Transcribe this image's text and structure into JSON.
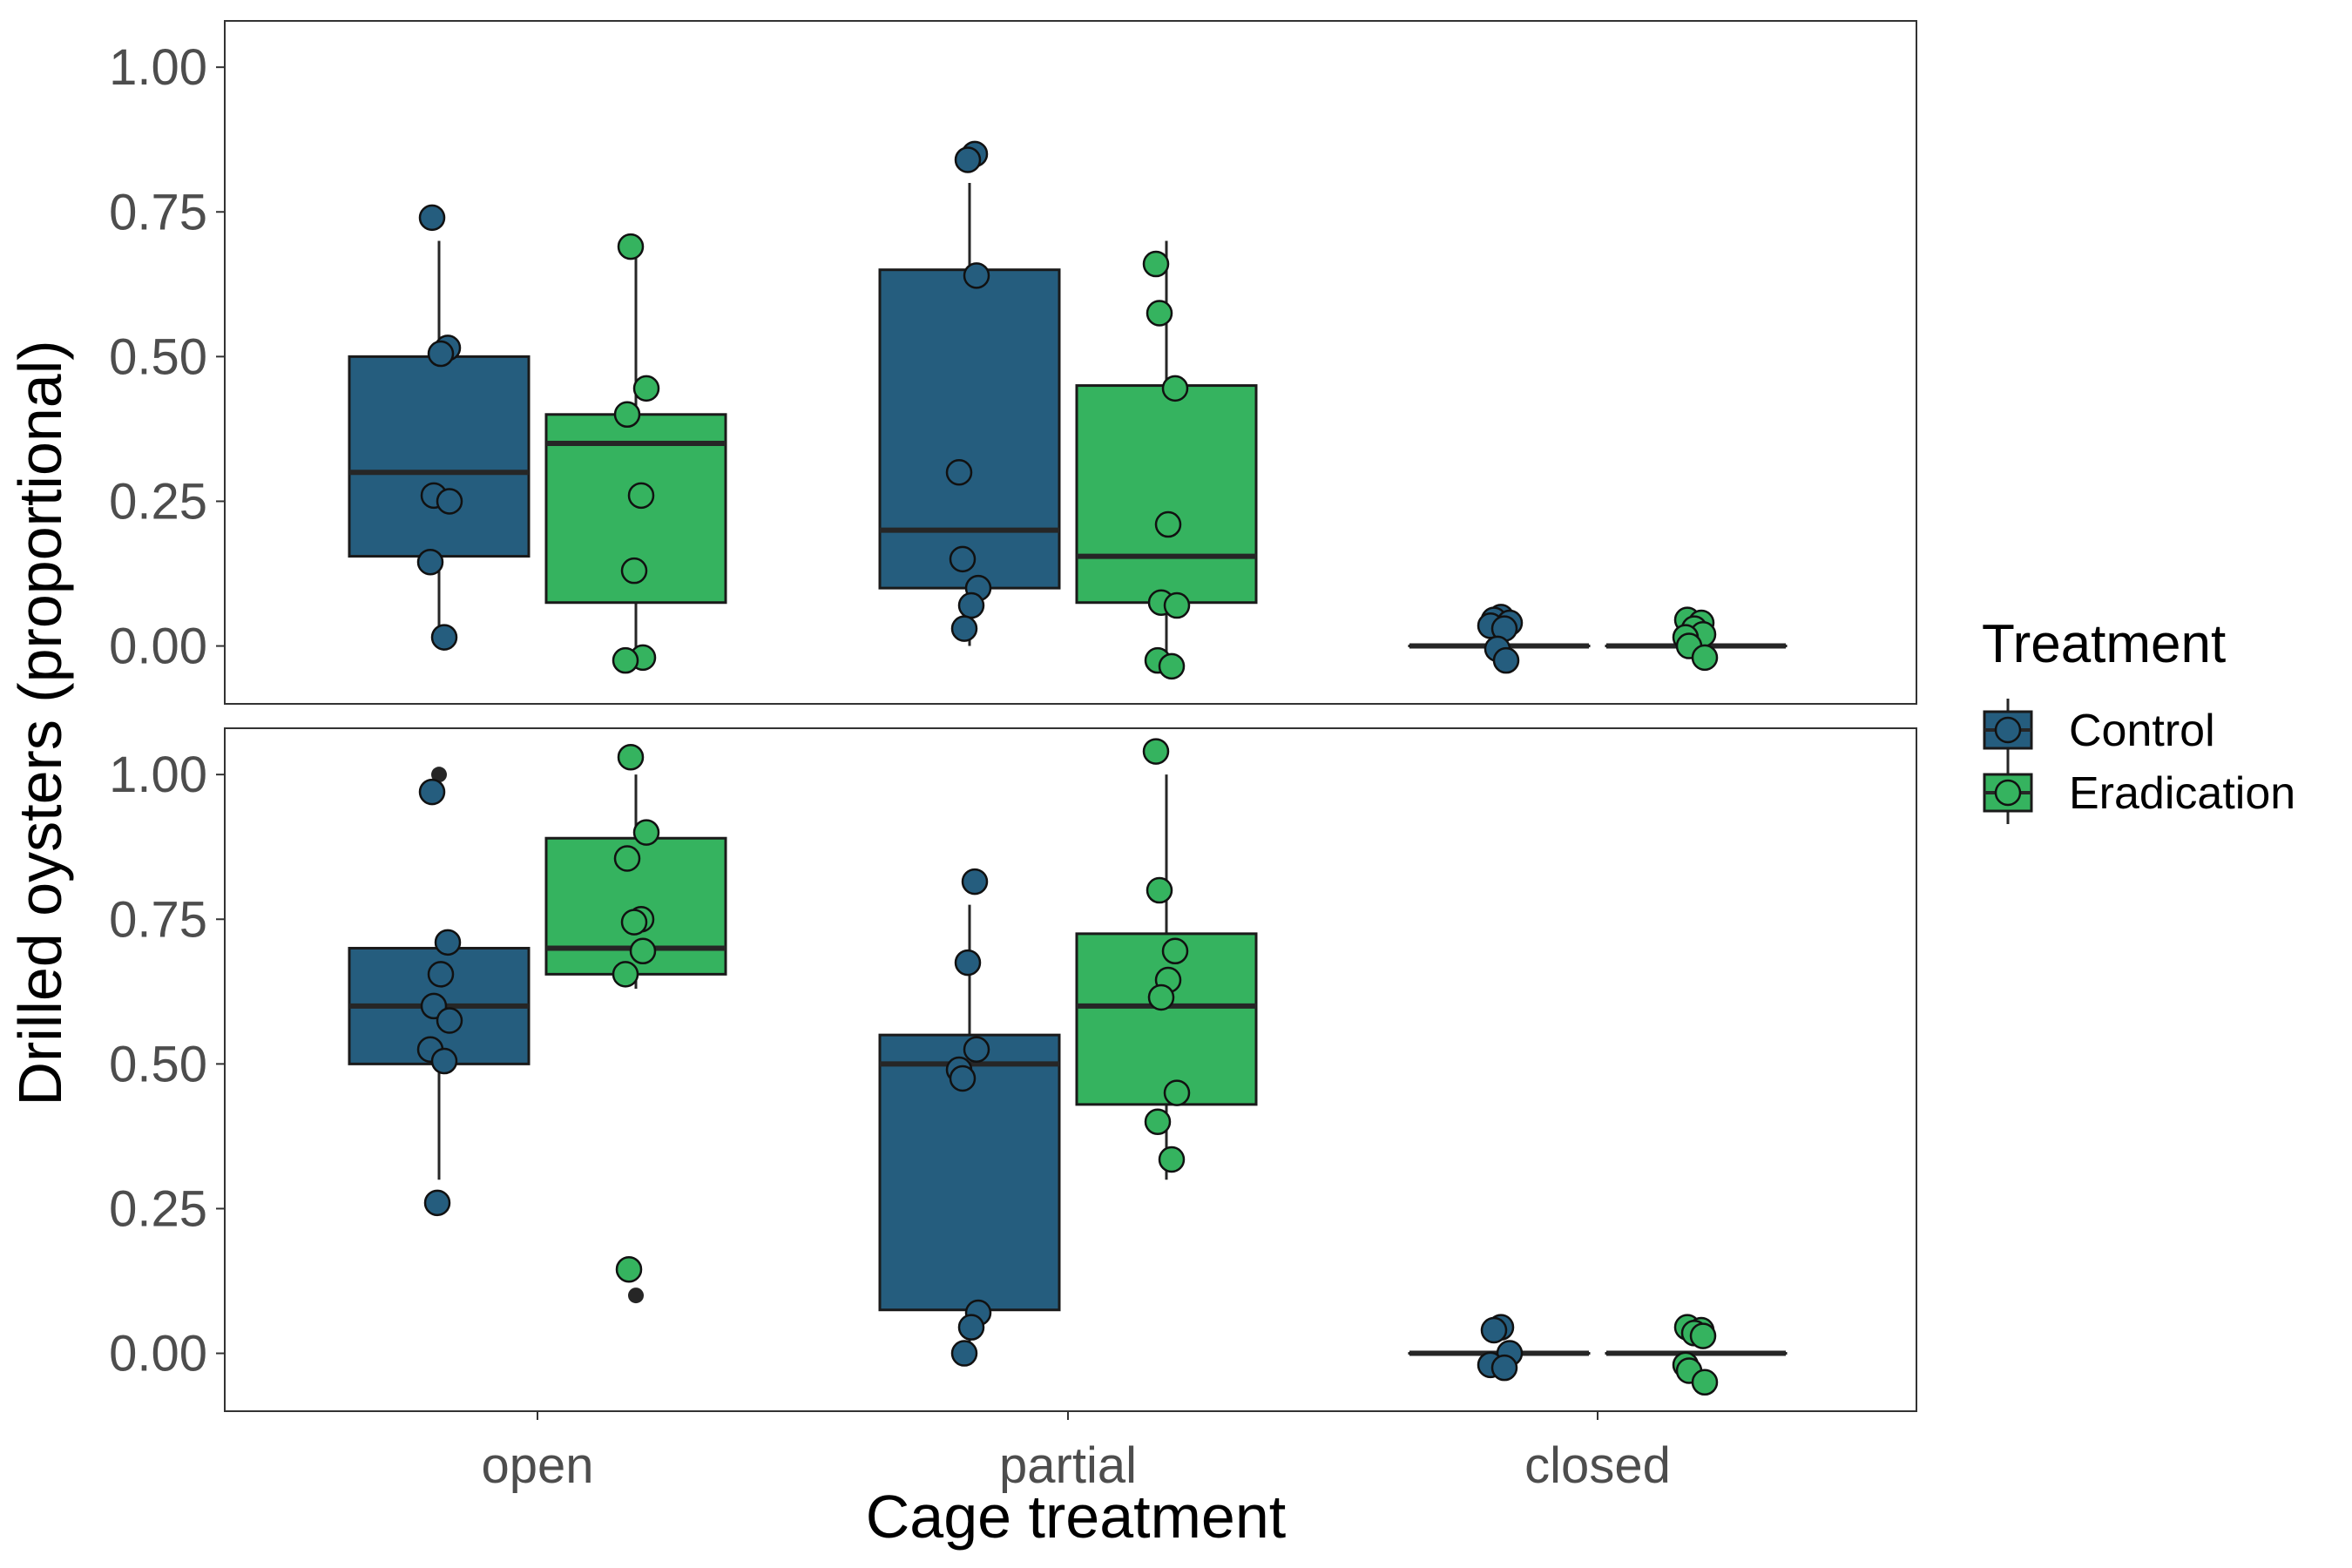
{
  "chart_data": {
    "type": "boxplot",
    "xlabel": "Cage treatment",
    "ylabel": "Drilled oysters (proportional)",
    "categories": [
      "open",
      "partial",
      "closed"
    ],
    "ylim": [
      -0.1,
      1.08
    ],
    "yticks": [
      0.0,
      0.25,
      0.5,
      0.75,
      1.0
    ],
    "ytick_labels": [
      "0.00",
      "0.25",
      "0.50",
      "0.75",
      "1.00"
    ],
    "legend": {
      "title": "Treatment",
      "position": "right",
      "entries": [
        {
          "name": "Control",
          "color": "#255d7e"
        },
        {
          "name": "Eradication",
          "color": "#35b35f"
        }
      ]
    },
    "colors": {
      "Control": "#255d7e",
      "Eradication": "#35b35f",
      "median": "#262626",
      "outline": "#1a1a1a"
    },
    "panels": [
      {
        "boxes": [
          {
            "category": "open",
            "group": "Control",
            "whisker_low": 0.02,
            "q1": 0.155,
            "median": 0.3,
            "q3": 0.5,
            "whisker_high": 0.7,
            "outliers": [],
            "points": [
              0.74,
              0.515,
              0.505,
              0.26,
              0.25,
              0.145,
              0.015
            ]
          },
          {
            "category": "open",
            "group": "Eradication",
            "whisker_low": -0.025,
            "q1": 0.075,
            "median": 0.35,
            "q3": 0.4,
            "whisker_high": 0.69,
            "outliers": [],
            "points": [
              0.69,
              0.445,
              0.4,
              0.26,
              0.13,
              -0.02,
              -0.025
            ]
          },
          {
            "category": "partial",
            "group": "Control",
            "whisker_low": 0.0,
            "q1": 0.1,
            "median": 0.2,
            "q3": 0.65,
            "whisker_high": 0.8,
            "outliers": [],
            "points": [
              0.85,
              0.84,
              0.64,
              0.3,
              0.15,
              0.1,
              0.07,
              0.03
            ]
          },
          {
            "category": "partial",
            "group": "Eradication",
            "whisker_low": -0.03,
            "q1": 0.075,
            "median": 0.155,
            "q3": 0.45,
            "whisker_high": 0.7,
            "outliers": [],
            "points": [
              0.66,
              0.575,
              0.445,
              0.21,
              0.075,
              0.07,
              -0.025,
              -0.035
            ]
          },
          {
            "category": "closed",
            "group": "Control",
            "whisker_low": 0.0,
            "q1": 0.0,
            "median": 0.0,
            "q3": 0.0,
            "whisker_high": 0.0,
            "outliers": [],
            "points": [
              0.05,
              0.045,
              0.04,
              0.035,
              0.03,
              -0.005,
              -0.025
            ]
          },
          {
            "category": "closed",
            "group": "Eradication",
            "whisker_low": 0.0,
            "q1": 0.0,
            "median": 0.0,
            "q3": 0.0,
            "whisker_high": 0.0,
            "outliers": [],
            "points": [
              0.045,
              0.04,
              0.03,
              0.02,
              0.015,
              0.0,
              -0.02
            ]
          }
        ]
      },
      {
        "boxes": [
          {
            "category": "open",
            "group": "Control",
            "whisker_low": 0.3,
            "q1": 0.5,
            "median": 0.6,
            "q3": 0.7,
            "whisker_high": 0.7,
            "outliers": [
              1.0
            ],
            "points": [
              0.97,
              0.71,
              0.655,
              0.6,
              0.575,
              0.525,
              0.505,
              0.26
            ]
          },
          {
            "category": "open",
            "group": "Eradication",
            "whisker_low": 0.63,
            "q1": 0.655,
            "median": 0.7,
            "q3": 0.89,
            "whisker_high": 1.0,
            "outliers": [
              0.1
            ],
            "points": [
              1.03,
              0.9,
              0.855,
              0.75,
              0.745,
              0.695,
              0.655,
              0.145
            ]
          },
          {
            "category": "partial",
            "group": "Control",
            "whisker_low": 0.0,
            "q1": 0.075,
            "median": 0.5,
            "q3": 0.55,
            "whisker_high": 0.775,
            "outliers": [],
            "points": [
              0.815,
              0.675,
              0.525,
              0.49,
              0.475,
              0.07,
              0.045,
              0.0
            ]
          },
          {
            "category": "partial",
            "group": "Eradication",
            "whisker_low": 0.3,
            "q1": 0.43,
            "median": 0.6,
            "q3": 0.725,
            "whisker_high": 1.0,
            "outliers": [],
            "points": [
              1.04,
              0.8,
              0.695,
              0.645,
              0.615,
              0.45,
              0.4,
              0.335
            ]
          },
          {
            "category": "closed",
            "group": "Control",
            "whisker_low": 0.0,
            "q1": 0.0,
            "median": 0.0,
            "q3": 0.0,
            "whisker_high": 0.0,
            "outliers": [],
            "points": [
              0.045,
              0.04,
              0.0,
              -0.02,
              -0.025
            ]
          },
          {
            "category": "closed",
            "group": "Eradication",
            "whisker_low": 0.0,
            "q1": 0.0,
            "median": 0.0,
            "q3": 0.0,
            "whisker_high": 0.0,
            "outliers": [],
            "points": [
              0.045,
              0.04,
              0.035,
              0.03,
              -0.02,
              -0.03,
              -0.05
            ]
          }
        ]
      }
    ]
  }
}
